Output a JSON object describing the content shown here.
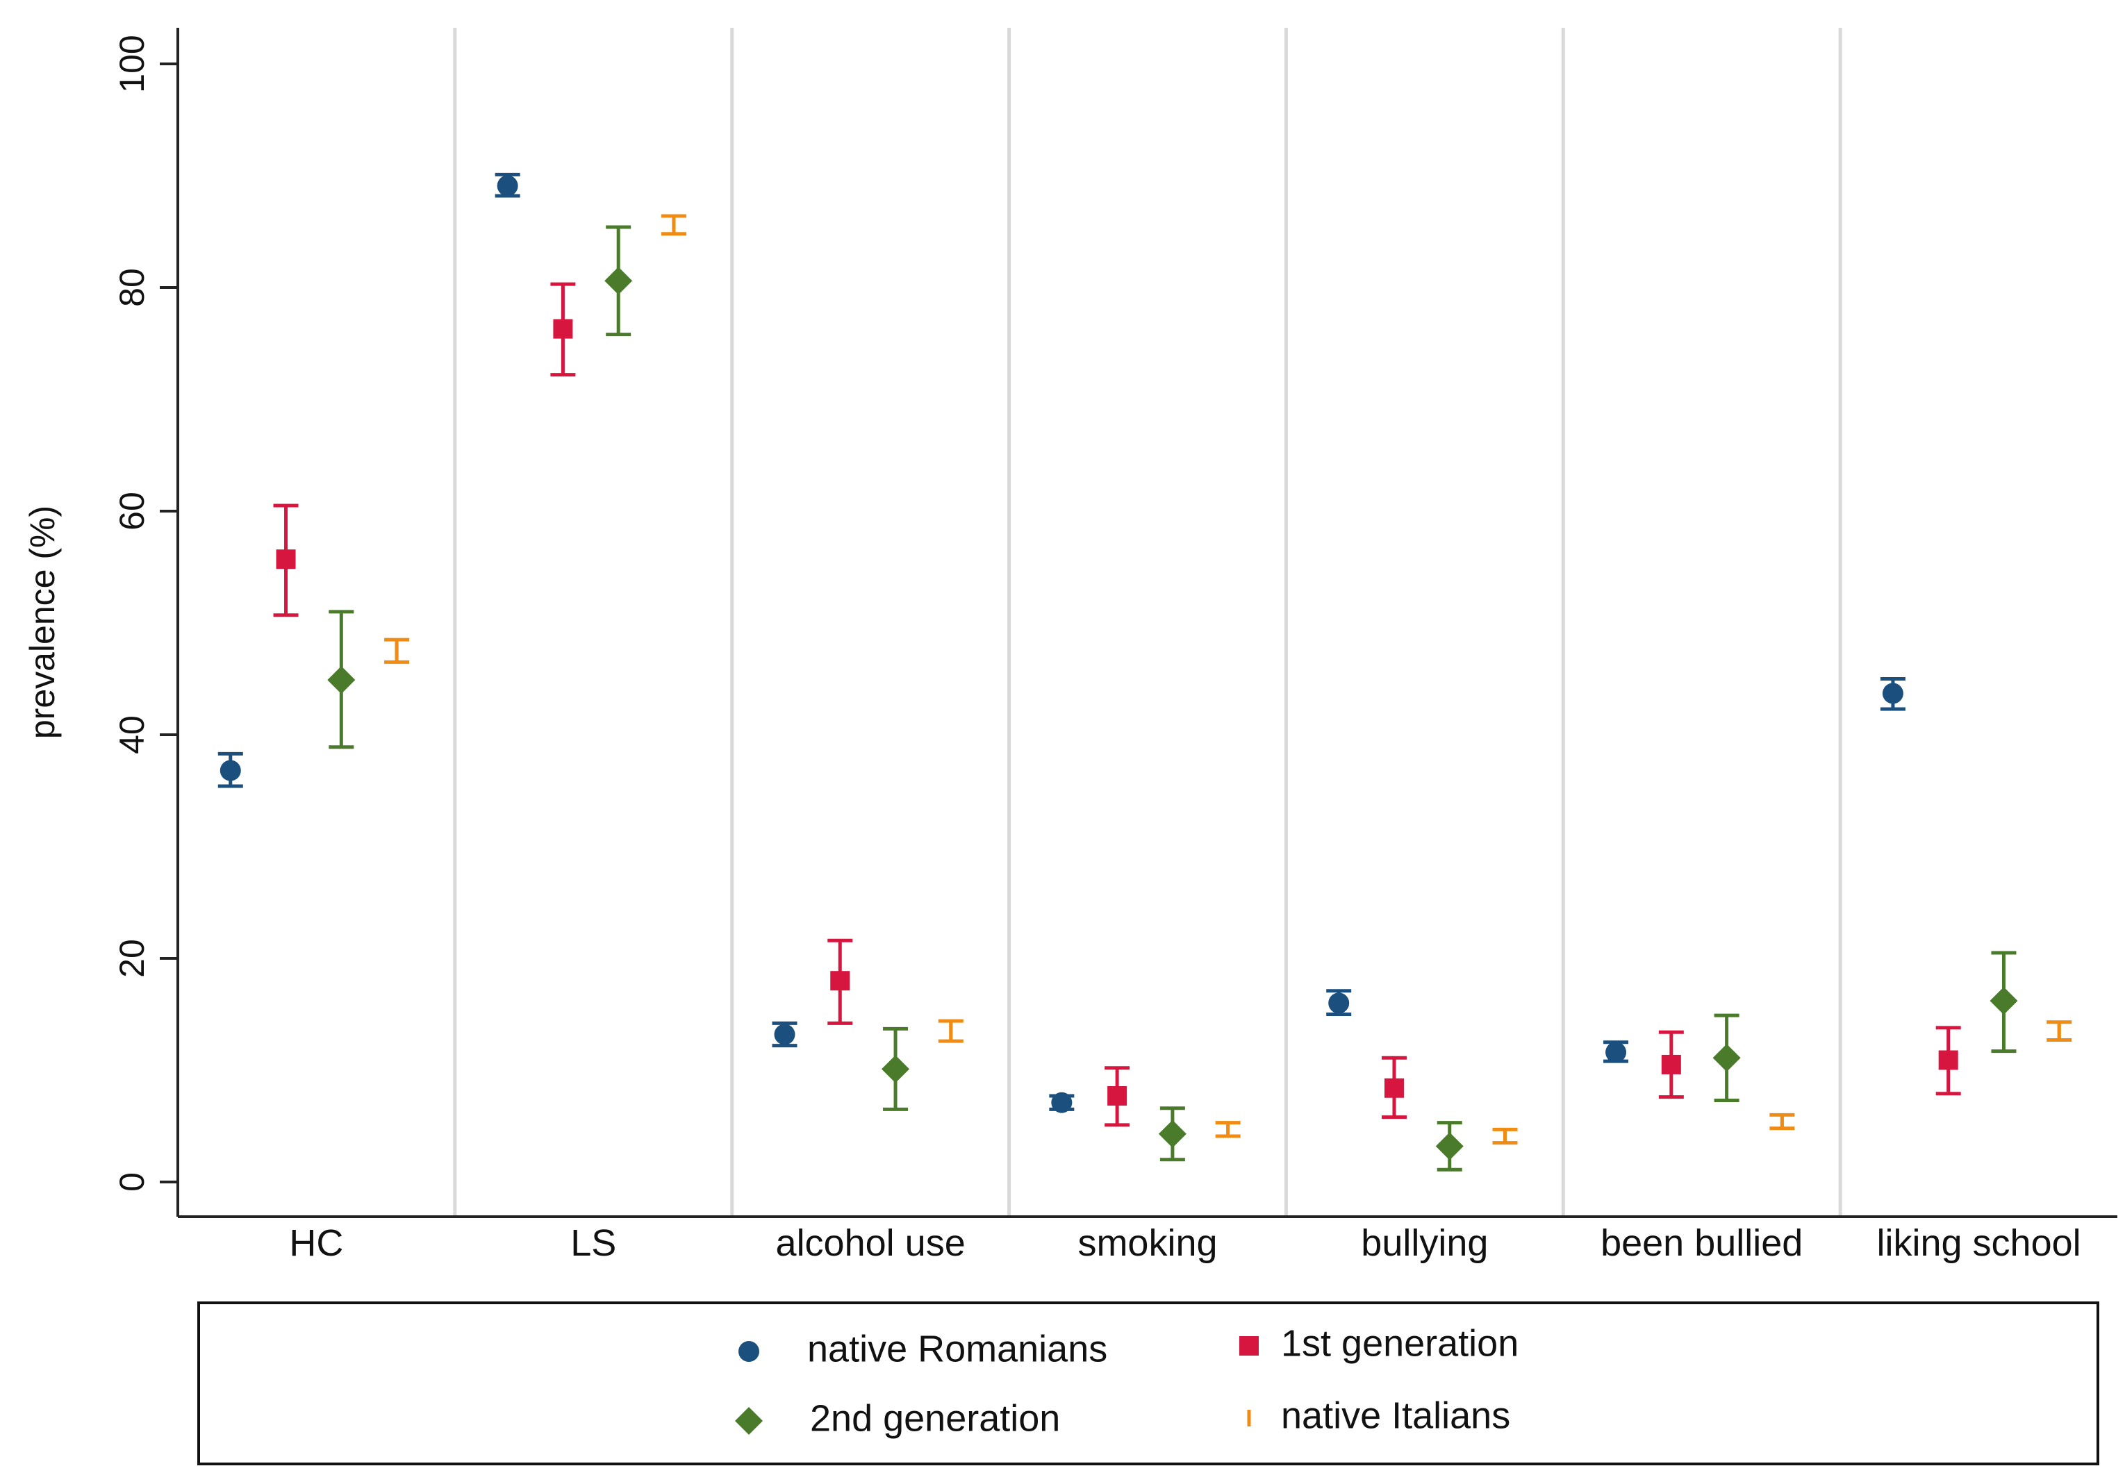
{
  "chart_data": {
    "type": "dot-errorbar",
    "title": "",
    "xlabel": "",
    "ylabel": "prevalence (%)",
    "ylim": [
      0,
      100
    ],
    "yticks": [
      0,
      20,
      40,
      60,
      80,
      100
    ],
    "grid": "vertical separators between categories",
    "categories": [
      "HC",
      "LS",
      "alcohol use",
      "smoking",
      "bullying",
      "been bullied",
      "liking school"
    ],
    "series": [
      {
        "name": "native Romanians",
        "marker": "circle",
        "color": "#1a4f7e",
        "values": [
          36.8,
          89.1,
          13.2,
          7.1,
          16.0,
          11.6,
          43.7
        ],
        "lower": [
          35.4,
          88.2,
          12.2,
          6.5,
          15.0,
          10.8,
          42.3
        ],
        "upper": [
          38.3,
          90.1,
          14.2,
          7.7,
          17.1,
          12.5,
          45.0
        ]
      },
      {
        "name": "1st generation",
        "marker": "square",
        "color": "#d7163f",
        "values": [
          55.7,
          76.3,
          18.0,
          7.7,
          8.4,
          10.5,
          10.9
        ],
        "lower": [
          50.7,
          72.2,
          14.2,
          5.1,
          5.8,
          7.6,
          7.9
        ],
        "upper": [
          60.5,
          80.3,
          21.6,
          10.2,
          11.1,
          13.4,
          13.8
        ]
      },
      {
        "name": "2nd generation",
        "marker": "diamond",
        "color": "#4a7b2a",
        "values": [
          44.9,
          80.6,
          10.1,
          4.3,
          3.2,
          11.1,
          16.2
        ],
        "lower": [
          38.9,
          75.8,
          6.5,
          2.0,
          1.1,
          7.3,
          11.7
        ],
        "upper": [
          51.0,
          85.4,
          13.7,
          6.6,
          5.3,
          14.9,
          20.5
        ]
      },
      {
        "name": "native Italians",
        "marker": "capped-bar",
        "color": "#f08c14",
        "values": [
          47.5,
          85.6,
          13.5,
          4.7,
          4.1,
          5.4,
          13.5
        ],
        "lower": [
          46.5,
          84.8,
          12.6,
          4.1,
          3.5,
          4.8,
          12.7
        ],
        "upper": [
          48.5,
          86.4,
          14.4,
          5.3,
          4.7,
          6.0,
          14.3
        ]
      }
    ],
    "legend": {
      "position": "bottom",
      "columns": 2,
      "order": [
        "native Romanians",
        "1st generation",
        "2nd generation",
        "native Italians"
      ]
    }
  }
}
